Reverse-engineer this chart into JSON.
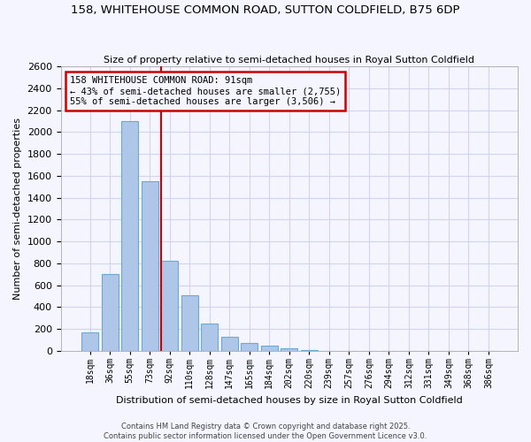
{
  "title1": "158, WHITEHOUSE COMMON ROAD, SUTTON COLDFIELD, B75 6DP",
  "title2": "Size of property relative to semi-detached houses in Royal Sutton Coldfield",
  "xlabel": "Distribution of semi-detached houses by size in Royal Sutton Coldfield",
  "ylabel": "Number of semi-detached properties",
  "bin_labels": [
    "18sqm",
    "36sqm",
    "55sqm",
    "73sqm",
    "92sqm",
    "110sqm",
    "128sqm",
    "147sqm",
    "165sqm",
    "184sqm",
    "202sqm",
    "220sqm",
    "239sqm",
    "257sqm",
    "276sqm",
    "294sqm",
    "312sqm",
    "331sqm",
    "349sqm",
    "368sqm",
    "386sqm"
  ],
  "bar_values": [
    170,
    700,
    2100,
    1550,
    820,
    510,
    250,
    130,
    75,
    45,
    20,
    5,
    0,
    0,
    0,
    0,
    0,
    0,
    0,
    0,
    0
  ],
  "bar_color": "#aec6e8",
  "bar_edge_color": "#6aaad4",
  "property_bin_index": 4,
  "vline_color": "#cc0000",
  "annotation_line1": "158 WHITEHOUSE COMMON ROAD: 91sqm",
  "annotation_line2": "← 43% of semi-detached houses are smaller (2,755)",
  "annotation_line3": "55% of semi-detached houses are larger (3,506) →",
  "annotation_box_edge_color": "#cc0000",
  "ylim": [
    0,
    2600
  ],
  "yticks": [
    0,
    200,
    400,
    600,
    800,
    1000,
    1200,
    1400,
    1600,
    1800,
    2000,
    2200,
    2400,
    2600
  ],
  "footer1": "Contains HM Land Registry data © Crown copyright and database right 2025.",
  "footer2": "Contains public sector information licensed under the Open Government Licence v3.0.",
  "background_color": "#f5f5ff",
  "grid_color": "#d0d4ee"
}
